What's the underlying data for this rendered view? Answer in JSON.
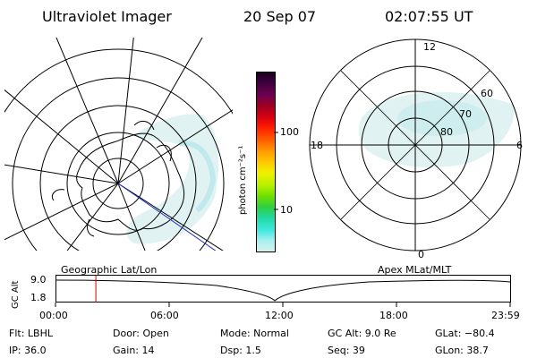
{
  "header": {
    "instrument": "Ultraviolet Imager",
    "date": "20 Sep 07",
    "time": "02:07:55 UT"
  },
  "colorbar": {
    "label": "photon cm⁻²s⁻¹",
    "ticks": [
      "100",
      "10"
    ],
    "colors": [
      "#1a0020",
      "#400040",
      "#700050",
      "#a00020",
      "#d80010",
      "#ff2000",
      "#ff6000",
      "#ff9a00",
      "#ffc800",
      "#f0f000",
      "#b8f000",
      "#70e000",
      "#30d040",
      "#20d8a0",
      "#40e8e0",
      "#a8f0f0",
      "#d8f0ec"
    ]
  },
  "right_map": {
    "mlt_labels": [
      "12",
      "18",
      "6",
      "0"
    ],
    "mlat_labels": [
      "60",
      "70",
      "80"
    ]
  },
  "timeline": {
    "yaxis_label": "GC Alt",
    "y_ticks": [
      "9.0",
      "1.8"
    ],
    "left_caption": "Geographic Lat/Lon",
    "right_caption": "Apex MLat/MLT",
    "x_ticks": [
      "00:00",
      "06:00",
      "12:00",
      "18:00",
      "23:59"
    ],
    "marker_time_hours": 2.13,
    "marker_color": "#d00000"
  },
  "info": {
    "filter": "Flt: LBHL",
    "door": "Door: Open",
    "mode": "Mode: Normal",
    "gc_alt": "GC Alt: 9.0 Re",
    "glat": "GLat: −80.4",
    "ip": "IP: 36.0",
    "gain": "Gain: 14",
    "dsp": "Dsp:    1.5",
    "seq": "Seq: 39",
    "glon": "GLon:  38.7"
  }
}
